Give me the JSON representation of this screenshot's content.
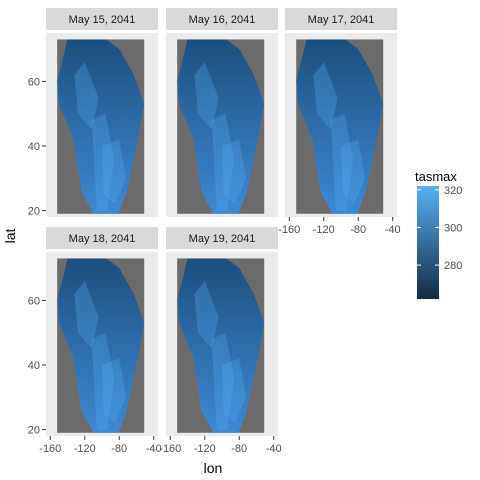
{
  "chart_data": {
    "type": "heatmap",
    "variable": "tasmax",
    "xlabel": "lon",
    "ylabel": "lat",
    "xlim": [
      -165,
      -35
    ],
    "ylim": [
      18,
      75
    ],
    "x_ticks": [
      -160,
      -120,
      -80,
      -40
    ],
    "x_tick_labels": [
      "-160",
      "-120",
      "-80",
      "-40"
    ],
    "y_ticks": [
      20,
      40,
      60
    ],
    "y_tick_labels": [
      "20",
      "40",
      "60"
    ],
    "grid": true,
    "facet_layout": {
      "ncol": 3,
      "nrow": 2
    },
    "facets": [
      {
        "label": "May 15, 2041"
      },
      {
        "label": "May 16, 2041"
      },
      {
        "label": "May 17, 2041"
      },
      {
        "label": "May 18, 2041"
      },
      {
        "label": "May 19, 2041"
      }
    ],
    "legend": {
      "title": "tasmax",
      "position": "right",
      "range": [
        262,
        322
      ],
      "ticks": [
        280,
        300,
        320
      ],
      "tick_labels": [
        "280",
        "300",
        "320"
      ],
      "low_color": "#132b43",
      "high_color": "#56b1f7"
    },
    "panel_background": "#6b6b6b",
    "strip_background": "#d9d9d9"
  }
}
